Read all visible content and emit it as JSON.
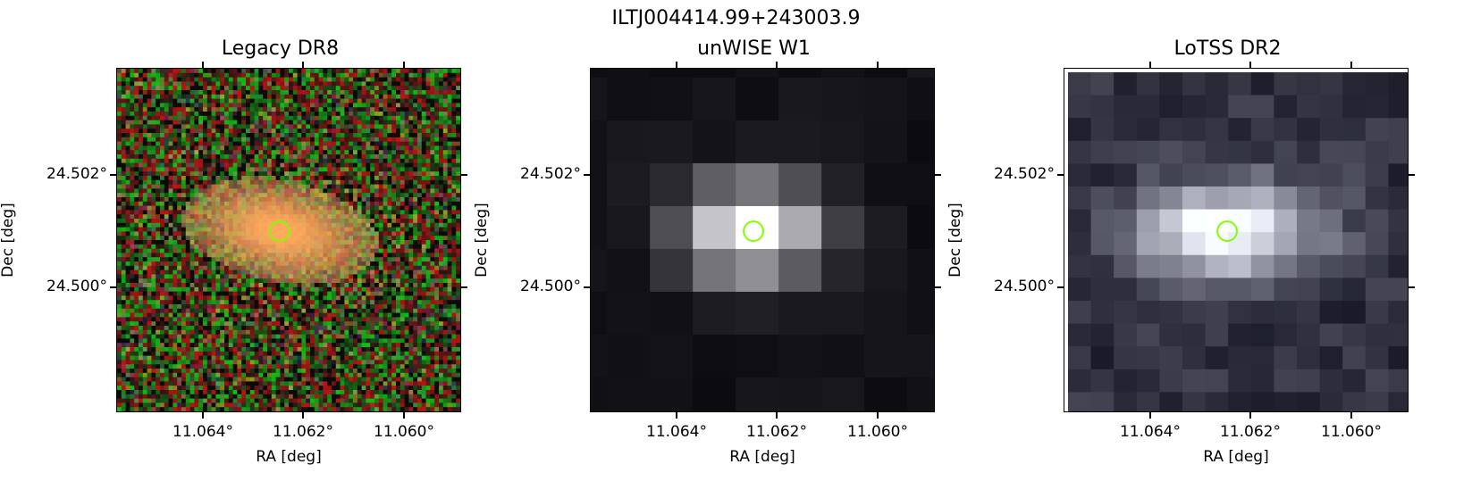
{
  "figure": {
    "suptitle": "ILTJ004414.99+243003.9"
  },
  "panels": [
    {
      "title": "Legacy DR8",
      "xlabel": "RA [deg]",
      "ylabel": "Dec [deg]",
      "xticks": [
        "11.064°",
        "11.062°",
        "11.060°"
      ],
      "yticks": [
        "24.502°",
        "24.500°"
      ],
      "image": "optical color image of an elongated galaxy with orange core and noisy red-green background"
    },
    {
      "title": "unWISE W1",
      "xlabel": "RA [deg]",
      "ylabel": "Dec [deg]",
      "xticks": [
        "11.064°",
        "11.062°",
        "11.060°"
      ],
      "yticks": [
        "24.502°",
        "24.500°"
      ],
      "image": "coarse-pixel infrared image, bright central source"
    },
    {
      "title": "LoTSS DR2",
      "xlabel": "RA [deg]",
      "ylabel": "Dec [deg]",
      "xticks": [
        "11.064°",
        "11.062°",
        "11.060°"
      ],
      "yticks": [
        "24.502°",
        "24.500°"
      ],
      "image": "radio image with diffuse elongated bright emission"
    }
  ],
  "marker": {
    "shape": "circle",
    "color": "#7fff00"
  },
  "colors": {
    "tick": "#000000",
    "marker": "#7fff00"
  }
}
